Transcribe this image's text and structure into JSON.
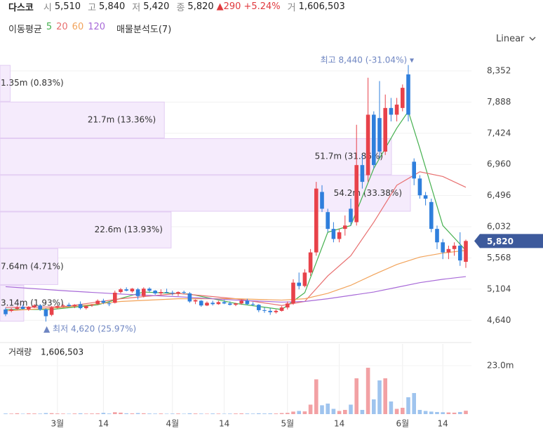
{
  "header": {
    "name": "다스코",
    "fields": [
      {
        "label": "시",
        "value": "5,510"
      },
      {
        "label": "고",
        "value": "5,840"
      },
      {
        "label": "저",
        "value": "5,420"
      },
      {
        "label": "종",
        "value": "5,820"
      }
    ],
    "change": "▲290",
    "change_pct": "+5.24%",
    "volume_label": "거",
    "volume": "1,606,503"
  },
  "chart_data": {
    "type": "candlestick",
    "scale": "Linear",
    "ma_title": "이동평균",
    "categories": [
      null,
      null,
      null,
      null,
      null,
      null,
      null,
      null,
      null,
      "3월",
      null,
      null,
      null,
      null,
      null,
      null,
      null,
      "14",
      null,
      null,
      null,
      null,
      null,
      null,
      null,
      null,
      null,
      null,
      null,
      "4월",
      null,
      null,
      null,
      null,
      null,
      null,
      null,
      null,
      "14",
      null,
      null,
      null,
      null,
      null,
      null,
      null,
      null,
      null,
      null,
      "5월",
      null,
      null,
      null,
      null,
      null,
      null,
      null,
      null,
      "14",
      null,
      null,
      null,
      null,
      null,
      null,
      null,
      null,
      null,
      null,
      "6월",
      null,
      null,
      null,
      null,
      null,
      null,
      "14",
      null,
      null,
      null,
      null
    ],
    "open": [
      4800,
      4780,
      4810,
      4840,
      4800,
      4830,
      4860,
      4800,
      4720,
      4830,
      4850,
      4870,
      4850,
      4880,
      4820,
      4860,
      4880,
      4930,
      4890,
      4900,
      5060,
      5100,
      5070,
      5100,
      5000,
      5110,
      5080,
      5040,
      5060,
      5050,
      5040,
      5060,
      5040,
      4920,
      4930,
      4860,
      4900,
      4880,
      4910,
      4890,
      4870,
      4890,
      4930,
      4880,
      4870,
      4790,
      4780,
      4760,
      4780,
      4830,
      4890,
      5200,
      5150,
      5350,
      5650,
      6550,
      6250,
      6000,
      5850,
      6000,
      6300,
      6100,
      6950,
      6800,
      7700,
      7650,
      7150,
      7800,
      7700,
      7800,
      8300,
      7000,
      6750,
      6500,
      6400,
      6000,
      5800,
      5650,
      5700,
      5750,
      5510
    ],
    "high": [
      4830,
      4820,
      4850,
      4870,
      4850,
      4880,
      4880,
      4820,
      4850,
      4860,
      4880,
      4900,
      4880,
      4920,
      4860,
      4880,
      4950,
      4960,
      4920,
      5080,
      5120,
      5130,
      5120,
      5120,
      5130,
      5130,
      5090,
      5100,
      5110,
      5080,
      5070,
      5080,
      5060,
      4950,
      4940,
      4920,
      4930,
      4930,
      4940,
      4920,
      4900,
      4950,
      4960,
      4910,
      4880,
      4830,
      4820,
      4800,
      4850,
      4920,
      5250,
      5350,
      5400,
      5700,
      6700,
      6650,
      6300,
      6100,
      6000,
      6200,
      6450,
      7550,
      7100,
      8250,
      7750,
      8200,
      8000,
      7950,
      7950,
      8150,
      8440,
      7050,
      6800,
      6550,
      6450,
      6050,
      5850,
      5750,
      5800,
      5950,
      5840
    ],
    "low": [
      4700,
      4760,
      4790,
      4800,
      4780,
      4820,
      4780,
      4620,
      4700,
      4810,
      4830,
      4840,
      4820,
      4800,
      4800,
      4840,
      4870,
      4880,
      4850,
      4890,
      5040,
      5070,
      5050,
      4950,
      4980,
      5060,
      5020,
      5020,
      5040,
      5010,
      5000,
      5030,
      4900,
      4880,
      4840,
      4850,
      4860,
      4870,
      4880,
      4860,
      4850,
      4870,
      4870,
      4850,
      4760,
      4750,
      4720,
      4740,
      4770,
      4800,
      4870,
      5100,
      5130,
      5300,
      5600,
      6250,
      5950,
      5800,
      5800,
      5900,
      6050,
      6050,
      6600,
      6700,
      6900,
      7050,
      7100,
      7600,
      7600,
      7750,
      7600,
      6650,
      6450,
      6350,
      5950,
      5700,
      5550,
      5550,
      5600,
      5450,
      5420
    ],
    "close": [
      4730,
      4800,
      4830,
      4810,
      4840,
      4860,
      4800,
      4700,
      4830,
      4850,
      4860,
      4850,
      4870,
      4820,
      4850,
      4870,
      4930,
      4900,
      4880,
      5050,
      5100,
      5080,
      5110,
      5000,
      5110,
      5080,
      5040,
      5060,
      5050,
      5040,
      5060,
      5050,
      4920,
      4940,
      4860,
      4900,
      4880,
      4910,
      4890,
      4870,
      4890,
      4930,
      4880,
      4870,
      4790,
      4780,
      4760,
      4780,
      4830,
      4890,
      5200,
      5150,
      5350,
      5650,
      6600,
      6300,
      6000,
      5850,
      5950,
      6050,
      6100,
      6950,
      6700,
      7700,
      6950,
      7150,
      7800,
      7700,
      7850,
      8100,
      7700,
      6750,
      6500,
      6450,
      6000,
      5800,
      5650,
      5700,
      5750,
      5530,
      5820
    ],
    "up_color": "#e8424a",
    "down_color": "#2f7fdc",
    "ylim": [
      4392,
      8676
    ],
    "yticks": [
      {
        "value": 4640,
        "label": "4,640"
      },
      {
        "value": 5104,
        "label": "5,104"
      },
      {
        "value": 5568,
        "label": "5,568"
      },
      {
        "value": 6032,
        "label": "6,032"
      },
      {
        "value": 6496,
        "label": "6,496"
      },
      {
        "value": 6960,
        "label": "6,960"
      },
      {
        "value": 7424,
        "label": "7,424"
      },
      {
        "value": 7888,
        "label": "7,888"
      },
      {
        "value": 8352,
        "label": "8,352"
      }
    ],
    "last_price": {
      "value": 5820,
      "label": "5,820"
    },
    "moving_averages": [
      {
        "name": "5",
        "color": "#45b04f",
        "x": [
          0,
          8,
          16,
          24,
          32,
          40,
          48,
          52,
          54,
          56,
          60,
          64,
          68,
          70,
          72,
          76,
          80
        ],
        "values": [
          4800,
          4800,
          4870,
          5060,
          5030,
          4890,
          4800,
          5050,
          5500,
          5950,
          6050,
          6900,
          7500,
          7750,
          7200,
          6050,
          5680
        ]
      },
      {
        "name": "20",
        "color": "#e86f6f",
        "x": [
          0,
          10,
          20,
          30,
          40,
          48,
          52,
          56,
          60,
          64,
          68,
          72,
          76,
          80
        ],
        "values": [
          4830,
          4840,
          4960,
          5040,
          4960,
          4860,
          4920,
          5300,
          5600,
          6100,
          6650,
          6850,
          6780,
          6620
        ]
      },
      {
        "name": "60",
        "color": "#f2a35a",
        "x": [
          0,
          10,
          20,
          30,
          40,
          48,
          52,
          56,
          60,
          64,
          68,
          72,
          76,
          80
        ],
        "values": [
          4780,
          4830,
          4920,
          4960,
          4960,
          4940,
          4960,
          5040,
          5160,
          5320,
          5470,
          5580,
          5640,
          5680
        ]
      },
      {
        "name": "120",
        "color": "#a86ad8",
        "x": [
          0,
          10,
          20,
          30,
          40,
          48,
          52,
          56,
          60,
          64,
          68,
          72,
          76,
          80
        ],
        "values": [
          5140,
          5080,
          5030,
          4990,
          4940,
          4910,
          4920,
          4960,
          5010,
          5060,
          5130,
          5200,
          5250,
          5290
        ]
      }
    ],
    "profile": {
      "title": "매물분석도(7)",
      "color": "#f5ebfc",
      "border": "#e3cdf3",
      "bins": [
        4620,
        5166,
        5711,
        6257,
        6803,
        7349,
        7894,
        8440
      ],
      "values": [
        3140000,
        7640000,
        22600000,
        54200000,
        51700000,
        21700000,
        1350000
      ],
      "value_labels": [
        "3.14m (1.93%)",
        "7.64m (4.71%)",
        "22.6m (13.93%)",
        "54.2m (33.38%)",
        "51.7m (31.86%)",
        "21.7m (13.36%)",
        "1.35m (0.83%)"
      ],
      "xlim": [
        0,
        62260000
      ]
    },
    "annotations": [
      {
        "text": "최고 8,440 (-31.04%) ▾"
      },
      {
        "text": "▲ 최저 4,620 (25.97%)"
      }
    ],
    "volume": {
      "title": "거래량",
      "total": "1,606,503",
      "up_color": "#f2a1a4",
      "down_color": "#9fc4ee",
      "ylim": [
        0,
        33300000
      ],
      "yticks": [
        {
          "value": 23000000,
          "label": "23.0m"
        }
      ],
      "values": [
        300000,
        250000,
        400000,
        200000,
        350000,
        300000,
        250000,
        500000,
        450000,
        300000,
        250000,
        200000,
        300000,
        400000,
        250000,
        300000,
        350000,
        600000,
        300000,
        900000,
        700000,
        400000,
        350000,
        500000,
        400000,
        300000,
        250000,
        300000,
        200000,
        250000,
        300000,
        200000,
        400000,
        300000,
        250000,
        200000,
        300000,
        250000,
        200000,
        250000,
        300000,
        350000,
        300000,
        250000,
        400000,
        300000,
        350000,
        300000,
        500000,
        600000,
        1200000,
        1500000,
        1300000,
        4500000,
        16500000,
        4200000,
        5000000,
        2500000,
        1500000,
        2000000,
        4500000,
        17000000,
        2000000,
        22000000,
        7000000,
        16000000,
        17000000,
        6000000,
        2500000,
        3000000,
        8000000,
        10000000,
        2000000,
        1500000,
        1200000,
        1000000,
        900000,
        800000,
        700000,
        1000000,
        1606503
      ]
    }
  }
}
